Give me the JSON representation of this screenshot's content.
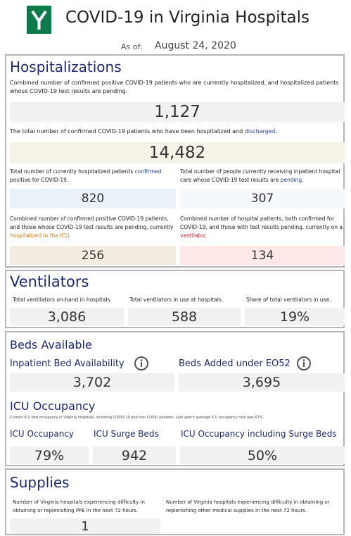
{
  "header": {
    "title": "COVID-19 in Virginia Hospitals",
    "as_of_label": "As of:",
    "as_of_date": "August 24, 2020"
  },
  "hospitalizations": {
    "title": "Hospitalizations",
    "current_desc": "Combined number of confirmed positive COVID-19 patients who are currently hospitalized, and hospitalized patients whose COVID-19 test results are pending.",
    "current_value": "1,127",
    "total_desc": [
      "The total number of confirmed COVID-19 patients who have been hospitalized and ",
      "discharged",
      "."
    ],
    "total_value": "14,482",
    "confirmed_desc": [
      "Total number of currently hospitalized patients ",
      "confirmed",
      " positive for COVID-19."
    ],
    "confirmed_value": "820",
    "pending_desc": [
      "Total number of people currently receiving inpatient hospital care whose COVID-19 test results are ",
      "pending",
      "."
    ],
    "pending_value": "307",
    "icu_desc": [
      "Combined number of confirmed positive COVID-19 patients, and those whose COVID-19 test results are pending, currently ",
      "hospitalized in the ICU",
      "."
    ],
    "icu_value": "256",
    "vent_desc": [
      "Combined number of hospital patients, both confirmed for COVID-19, and those with test results pending, currently on a ",
      "ventilator",
      "."
    ],
    "vent_value": "134"
  },
  "ventilators": {
    "title": "Ventilators",
    "items": [
      {
        "label": "Total ventilators on-hand in hospitals.",
        "value": "3,086"
      },
      {
        "label": "Total ventilators in use at hospitals.",
        "value": "588"
      },
      {
        "label": "Share of total ventilators in use.",
        "value": "19%"
      }
    ]
  },
  "beds": {
    "title": "Beds Available",
    "items": [
      {
        "label": "Inpatient Bed Availability",
        "value": "3,702"
      },
      {
        "label": "Beds Added under EO52",
        "value": "3,695"
      }
    ],
    "icu_title": "ICU Occupancy",
    "icu_note": "Current ICU bed occupancy in Virginia hospitals, including COVID-19 and non-COVID patients. Last year's average ICU occupancy rate was 67%.",
    "icu_items": [
      {
        "label": "ICU Occupancy",
        "value": "79%"
      },
      {
        "label": "ICU Surge Beds",
        "value": "942"
      },
      {
        "label": "ICU Occupancy including Surge Beds",
        "value": "50%"
      }
    ]
  },
  "supplies": {
    "title": "Supplies",
    "items": [
      {
        "label": "Number of Virginia hospitals experiencing difficulty in obtaining or replenishing PPE in the next 72 hours.",
        "value": "1"
      },
      {
        "label": "Number of Virginia hospitals experiencing difficulty in obtaining or replenishing other medical supplies in the next 72 hours."
      }
    ]
  }
}
